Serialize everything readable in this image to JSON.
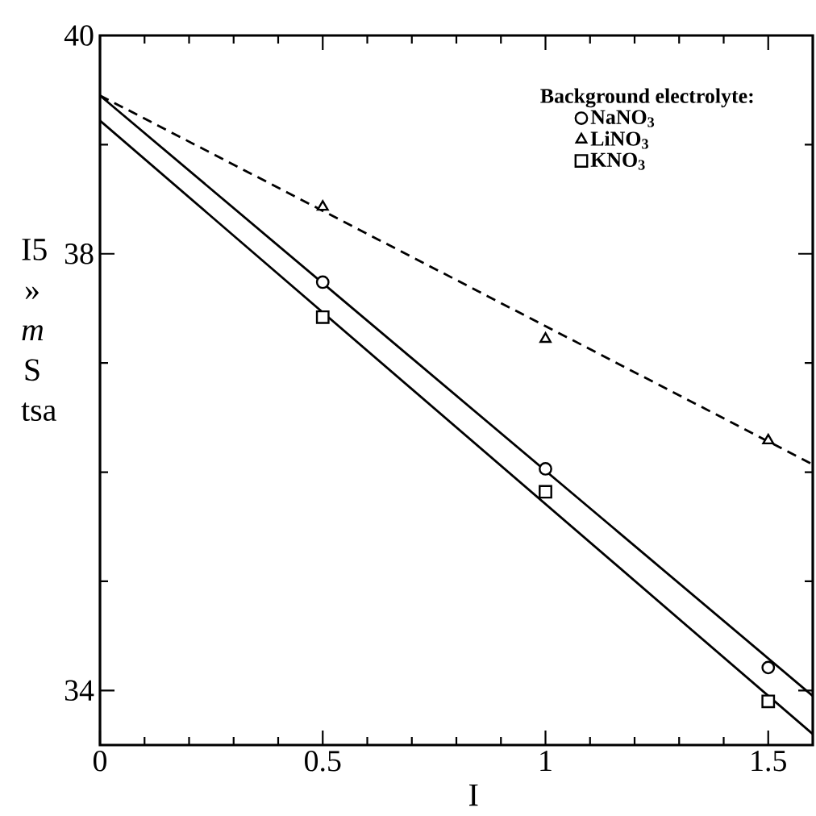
{
  "chart_data": {
    "type": "scatter",
    "xlabel": "I",
    "ylabel": "I5 » *m* S tsa",
    "legend_title": "Background electrolyte:",
    "xlim": [
      0,
      1.6
    ],
    "ylim": [
      33.5,
      40
    ],
    "xticks": [
      0,
      {
        "value": 0.1,
        "label": null
      },
      {
        "value": 0.2,
        "label": null
      },
      {
        "value": 0.3,
        "label": null
      },
      {
        "value": 0.4,
        "label": null
      },
      0.5,
      {
        "value": 0.6,
        "label": null
      },
      {
        "value": 0.7,
        "label": null
      },
      {
        "value": 0.8,
        "label": null
      },
      {
        "value": 0.9,
        "label": null
      },
      1,
      {
        "value": 1.1,
        "label": null
      },
      {
        "value": 1.2,
        "label": null
      },
      {
        "value": 1.3,
        "label": null
      },
      {
        "value": 1.4,
        "label": null
      },
      1.5
    ],
    "yticks": [
      34,
      {
        "value": 35,
        "label": null
      },
      {
        "value": 36,
        "label": null
      },
      {
        "value": 37,
        "label": null
      },
      38,
      {
        "value": 39,
        "label": null
      },
      40
    ],
    "legend": "top right",
    "series": [
      {
        "type": "line",
        "color": "#000000",
        "line_style": "solid",
        "marker": "none",
        "x": [
          0,
          1.6
        ],
        "values": [
          39.45,
          33.95
        ]
      },
      {
        "type": "line",
        "color": "#000000",
        "line_style": "dashed",
        "marker": "none",
        "x": [
          0,
          1.6
        ],
        "values": [
          39.45,
          36.07
        ]
      },
      {
        "type": "line",
        "color": "#000000",
        "line_style": "solid",
        "marker": "none",
        "x": [
          0,
          1.6
        ],
        "values": [
          39.22,
          33.6
        ]
      },
      {
        "name": "NaNO$_{3}$",
        "color": "#000000",
        "marker": "circle",
        "x": [
          0.5,
          1,
          1.5
        ],
        "values": [
          37.74,
          36.03,
          34.21
        ]
      },
      {
        "name": "LiNO$_{3}$",
        "color": "#000000",
        "marker": "triangle",
        "x": [
          0.5,
          1,
          1.5
        ],
        "values": [
          38.43,
          37.22,
          36.29
        ]
      },
      {
        "name": "KNO$_{3}$",
        "color": "#000000",
        "marker": "square",
        "x": [
          0.5,
          1,
          1.5
        ],
        "values": [
          37.42,
          35.82,
          33.9
        ]
      }
    ]
  }
}
